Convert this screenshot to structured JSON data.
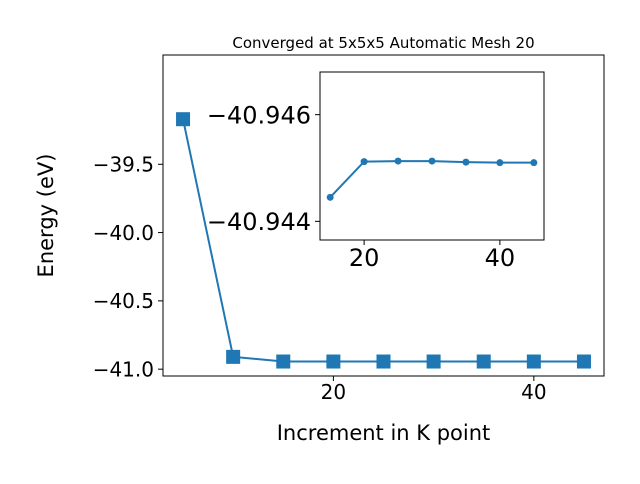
{
  "chart_data": [
    {
      "type": "line",
      "title": "Converged at 5x5x5 Automatic Mesh 20",
      "xlabel": "Increment in K point",
      "ylabel": "Energy (eV)",
      "xlim": [
        3,
        47
      ],
      "ylim": [
        -41.05,
        -38.7
      ],
      "xticks": [
        20,
        40
      ],
      "xtick_labels": [
        "20",
        "40"
      ],
      "yticks": [
        -41.0,
        -40.5,
        -40.0,
        -39.5
      ],
      "ytick_labels": [
        "−41.0",
        "−40.5",
        "−40.0",
        "−39.5"
      ],
      "grid": false,
      "marker": "square",
      "color": "#1f77b4",
      "series": [
        {
          "x": [
            5,
            10,
            15,
            20,
            25,
            30,
            35,
            40,
            45
          ],
          "y": [
            -39.17,
            -40.91,
            -40.944,
            -40.944,
            -40.944,
            -40.944,
            -40.944,
            -40.944,
            -40.944
          ]
        }
      ]
    },
    {
      "type": "line",
      "role": "inset",
      "xlim": [
        13.5,
        46.5
      ],
      "ylim": [
        -40.94365,
        -40.9468
      ],
      "xticks": [
        20,
        40
      ],
      "xtick_labels": [
        "20",
        "40"
      ],
      "yticks": [
        -40.946,
        -40.944
      ],
      "ytick_labels": [
        "−40.946",
        "−40.944"
      ],
      "grid": false,
      "marker": "circle",
      "color": "#1f77b4",
      "series": [
        {
          "x": [
            15,
            20,
            25,
            30,
            35,
            40,
            45
          ],
          "y": [
            -40.94445,
            -40.94512,
            -40.94513,
            -40.94513,
            -40.94511,
            -40.9451,
            -40.9451
          ]
        }
      ]
    }
  ]
}
